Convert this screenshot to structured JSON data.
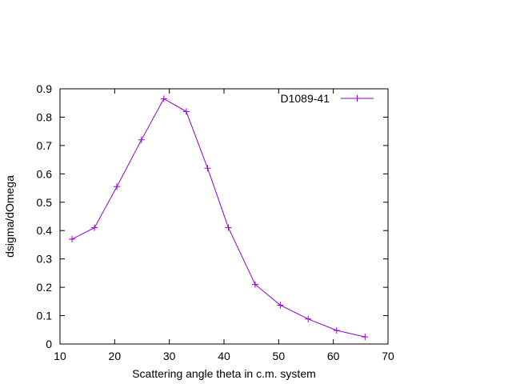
{
  "chart_data": {
    "type": "line",
    "title": "",
    "xlabel": "Scattering angle theta in c.m. system",
    "ylabel": "dsigma/dOmega",
    "xlim": [
      10,
      70
    ],
    "ylim": [
      0,
      0.9
    ],
    "x_ticks": [
      "10",
      "20",
      "30",
      "40",
      "50",
      "60",
      "70"
    ],
    "y_ticks": [
      "0",
      "0.1",
      "0.2",
      "0.3",
      "0.4",
      "0.5",
      "0.6",
      "0.7",
      "0.8",
      "0.9"
    ],
    "grid": false,
    "legend_position": "top-right",
    "marker": "plus",
    "series": [
      {
        "name": "D1089-41",
        "color": "#9400d3",
        "x": [
          12.2,
          16.3,
          20.4,
          24.9,
          29.0,
          33.1,
          37.0,
          40.8,
          45.7,
          50.3,
          55.4,
          60.6,
          65.8
        ],
        "y": [
          0.37,
          0.41,
          0.555,
          0.72,
          0.865,
          0.82,
          0.62,
          0.41,
          0.21,
          0.137,
          0.088,
          0.048,
          0.025
        ]
      }
    ]
  }
}
